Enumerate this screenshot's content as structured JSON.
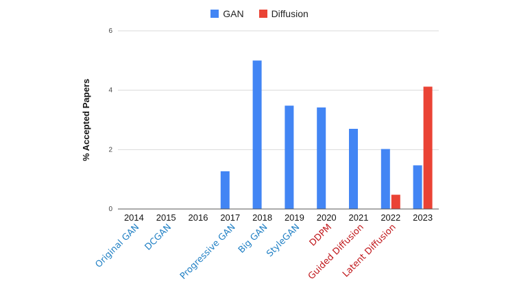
{
  "chart_data": {
    "type": "bar",
    "title": "",
    "xlabel": "",
    "ylabel": "% Accepted Papers",
    "ylim": [
      0,
      6
    ],
    "yticks": [
      0,
      2,
      4,
      6
    ],
    "grid": true,
    "legend_position": "top-center",
    "categories": [
      "2014",
      "2015",
      "2016",
      "2017",
      "2018",
      "2019",
      "2020",
      "2021",
      "2022",
      "2023"
    ],
    "series": [
      {
        "name": "GAN",
        "color": "#4285f4",
        "values": [
          0,
          0,
          0,
          1.27,
          5.0,
          3.48,
          3.42,
          2.7,
          2.02,
          1.47
        ]
      },
      {
        "name": "Diffusion",
        "color": "#ea4335",
        "values": [
          0,
          0,
          0,
          0,
          0,
          0,
          0,
          0,
          0.48,
          4.12
        ]
      }
    ],
    "annotations": [
      {
        "text": "Original GAN",
        "category": "2014",
        "color": "#1f7fc4"
      },
      {
        "text": "DCGAN",
        "category": "2015",
        "color": "#1f7fc4"
      },
      {
        "text": "Progressive GAN",
        "category": "2017",
        "color": "#1f7fc4"
      },
      {
        "text": "Big GAN",
        "category": "2018",
        "color": "#1f7fc4"
      },
      {
        "text": "StyleGAN",
        "category": "2019",
        "color": "#1f7fc4"
      },
      {
        "text": "DDPM",
        "category": "2020",
        "color": "#c0161a"
      },
      {
        "text": "Guided Diffusion",
        "category": "2021",
        "color": "#c0161a"
      },
      {
        "text": "Latent Diffusion",
        "category": "2022",
        "color": "#c0161a"
      }
    ]
  }
}
